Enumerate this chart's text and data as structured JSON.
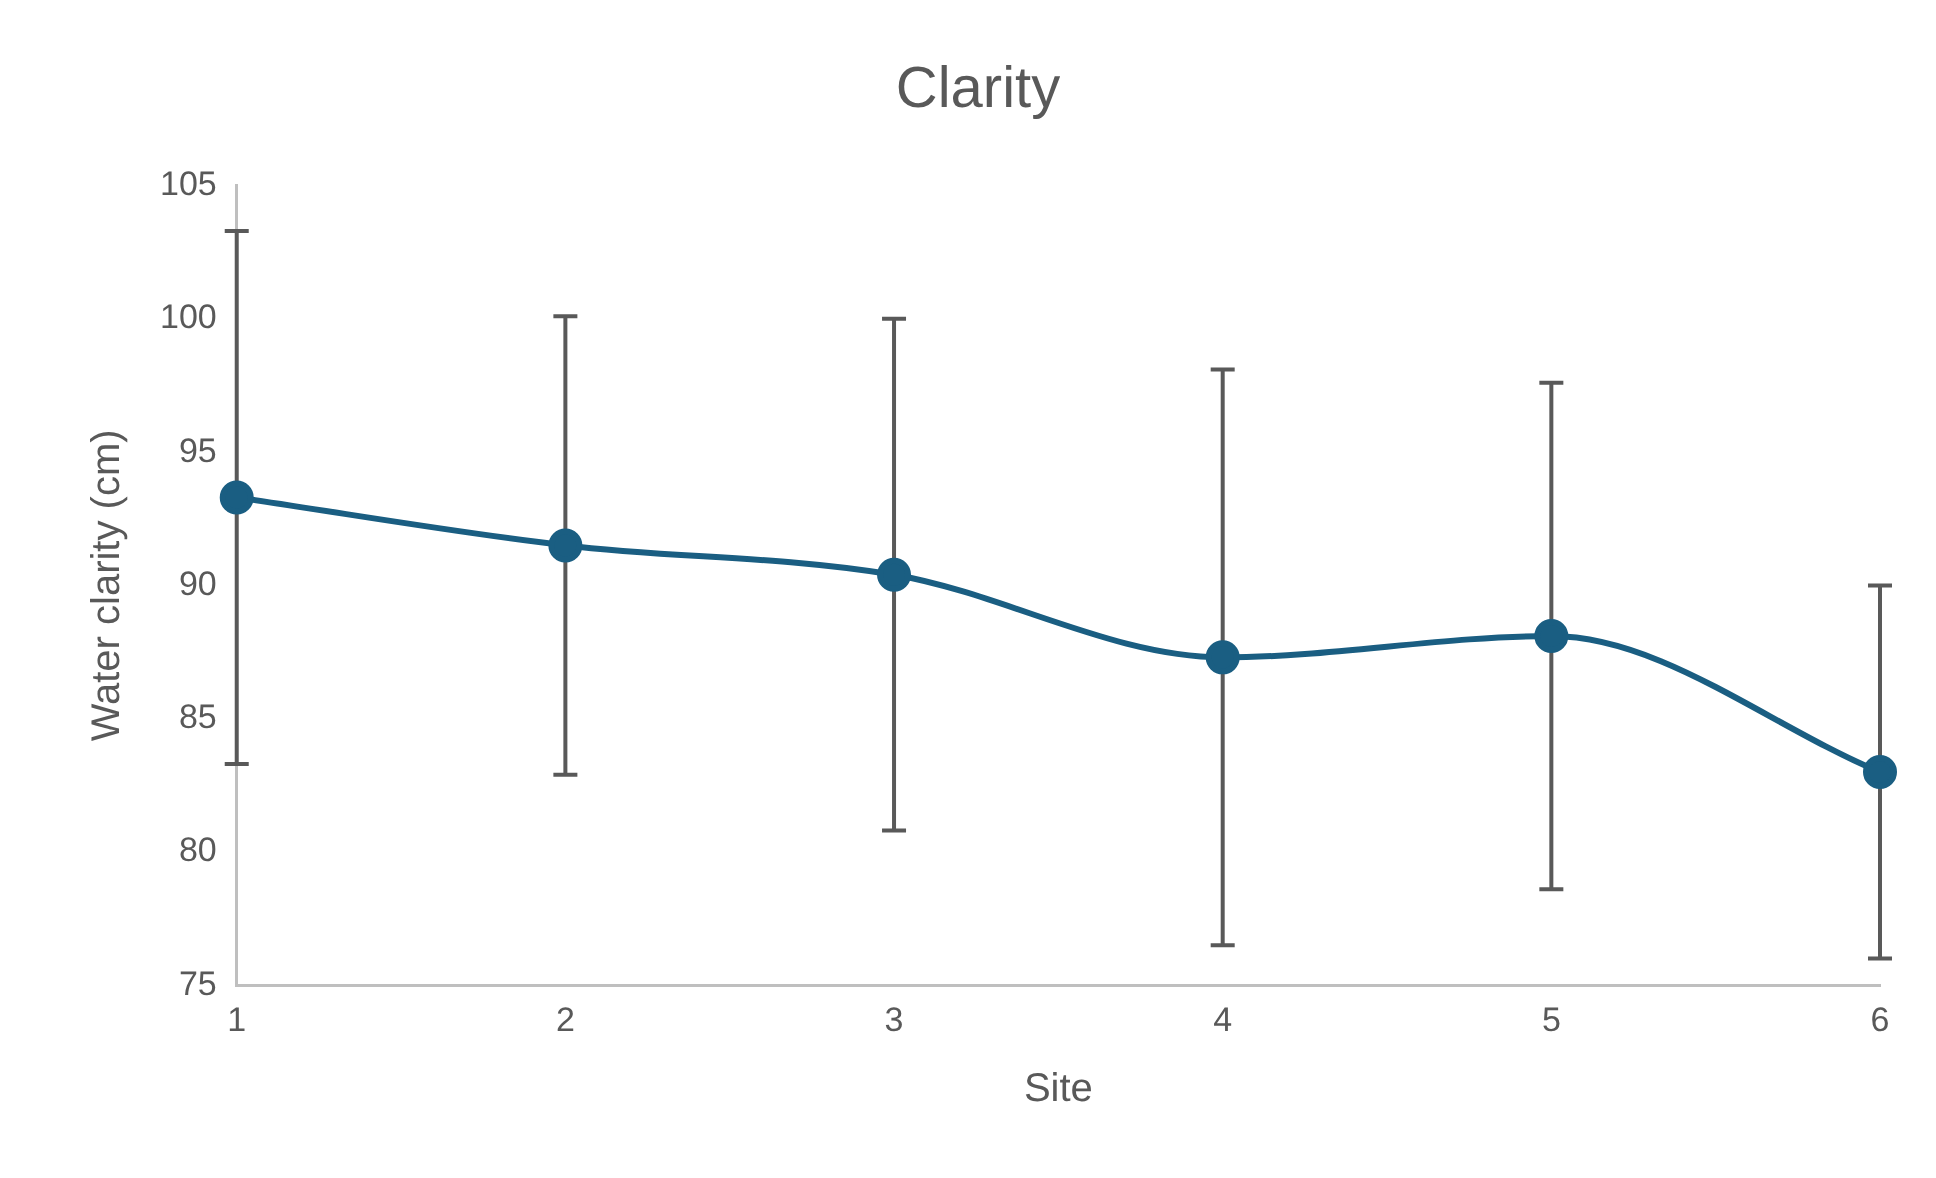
{
  "chart_data": {
    "type": "line",
    "title": "Clarity",
    "xlabel": "Site",
    "ylabel": "Water clarity (cm)",
    "x": [
      1,
      2,
      3,
      4,
      5,
      6
    ],
    "series": [
      {
        "color": "#1a5e82",
        "values": [
          93.3,
          91.5,
          90.4,
          87.3,
          88.1,
          83.0
        ],
        "errors": [
          10,
          8.6,
          9.6,
          10.8,
          9.5,
          7
        ]
      }
    ],
    "xlim": [
      1,
      6
    ],
    "xticks": [
      1,
      2,
      3,
      4,
      5,
      6
    ],
    "ylim": [
      75,
      105
    ],
    "yticks": [
      75,
      80,
      85,
      90,
      95,
      100,
      105
    ],
    "grid": false,
    "legend": false,
    "marker": "circle",
    "line_style": "solid"
  }
}
